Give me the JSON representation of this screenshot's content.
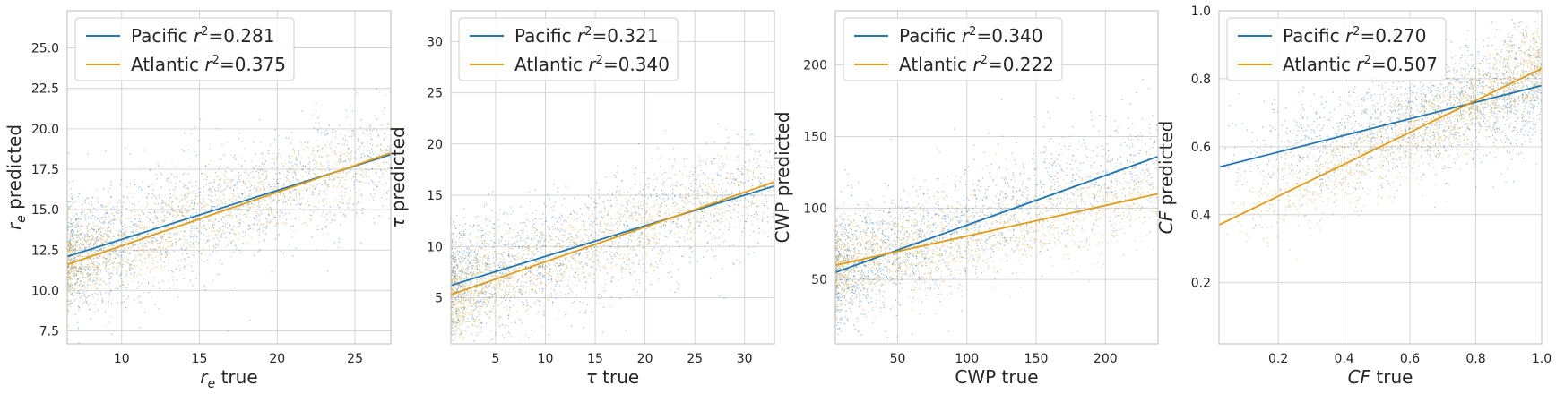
{
  "colors": {
    "pacific": "#1f77b4",
    "atlantic": "#e39c14",
    "grid": "#d4d4d4",
    "frame": "#c8c8c8"
  },
  "chart_data": [
    {
      "type": "scatter",
      "xlabel": {
        "var": "r",
        "sub": "e",
        "rest": " true"
      },
      "ylabel": {
        "var": "r",
        "sub": "e",
        "rest": " predicted"
      },
      "xlim": [
        6.5,
        27.3
      ],
      "ylim": [
        6.7,
        27.3
      ],
      "xticks": [
        10,
        15,
        20,
        25
      ],
      "yticks": [
        7.5,
        10.0,
        12.5,
        15.0,
        17.5,
        20.0,
        22.5,
        25.0
      ],
      "xtick_labels": [
        "10",
        "15",
        "20",
        "25"
      ],
      "ytick_labels": [
        "7.5",
        "10.0",
        "12.5",
        "15.0",
        "17.5",
        "20.0",
        "22.5",
        "25.0"
      ],
      "legend_position": "top-left",
      "series": [
        {
          "name": "Pacific",
          "r2_label": "Pacific r²=0.281",
          "r2": "0.281",
          "fit_line": [
            [
              6.5,
              12.1
            ],
            [
              27.3,
              18.4
            ]
          ]
        },
        {
          "name": "Atlantic",
          "r2_label": "Atlantic r²=0.375",
          "r2": "0.375",
          "fit_line": [
            [
              6.5,
              11.6
            ],
            [
              27.3,
              18.5
            ]
          ]
        }
      ]
    },
    {
      "type": "scatter",
      "xlabel": {
        "var": "τ",
        "sub": "",
        "rest": " true"
      },
      "ylabel": {
        "var": "τ",
        "sub": "",
        "rest": " predicted"
      },
      "xlim": [
        0.5,
        33
      ],
      "ylim": [
        0.5,
        33
      ],
      "xticks": [
        5,
        10,
        15,
        20,
        25,
        30
      ],
      "yticks": [
        5,
        10,
        15,
        20,
        25,
        30
      ],
      "xtick_labels": [
        "5",
        "10",
        "15",
        "20",
        "25",
        "30"
      ],
      "ytick_labels": [
        "5",
        "10",
        "15",
        "20",
        "25",
        "30"
      ],
      "legend_position": "top-left",
      "series": [
        {
          "name": "Pacific",
          "r2_label": "Pacific r²=0.321",
          "r2": "0.321",
          "fit_line": [
            [
              0.5,
              6.2
            ],
            [
              33,
              15.9
            ]
          ]
        },
        {
          "name": "Atlantic",
          "r2_label": "Atlantic r²=0.340",
          "r2": "0.340",
          "fit_line": [
            [
              0.5,
              5.3
            ],
            [
              33,
              16.3
            ]
          ]
        }
      ]
    },
    {
      "type": "scatter",
      "xlabel": {
        "var": "CWP",
        "sub": "",
        "rest": " true",
        "plain": true
      },
      "ylabel": {
        "var": "CWP",
        "sub": "",
        "rest": " predicted",
        "plain": true
      },
      "xlim": [
        5,
        238
      ],
      "ylim": [
        5,
        238
      ],
      "xticks": [
        50,
        100,
        150,
        200
      ],
      "yticks": [
        50,
        100,
        150,
        200
      ],
      "xtick_labels": [
        "50",
        "100",
        "150",
        "200"
      ],
      "ytick_labels": [
        "50",
        "100",
        "150",
        "200"
      ],
      "legend_position": "top-left",
      "series": [
        {
          "name": "Pacific",
          "r2_label": "Pacific r²=0.340",
          "r2": "0.340",
          "fit_line": [
            [
              5,
              55
            ],
            [
              238,
              136
            ]
          ]
        },
        {
          "name": "Atlantic",
          "r2_label": "Atlantic r²=0.222",
          "r2": "0.222",
          "fit_line": [
            [
              5,
              60
            ],
            [
              238,
              110
            ]
          ]
        }
      ]
    },
    {
      "type": "scatter",
      "xlabel": {
        "var": "CF",
        "sub": "",
        "rest": " true"
      },
      "ylabel": {
        "var": "CF",
        "sub": "",
        "rest": " predicted"
      },
      "xlim": [
        0.02,
        1.0
      ],
      "ylim": [
        0.02,
        1.0
      ],
      "xticks": [
        0.2,
        0.4,
        0.6,
        0.8,
        1.0
      ],
      "yticks": [
        0.2,
        0.4,
        0.6,
        0.8,
        1.0
      ],
      "xtick_labels": [
        "0.2",
        "0.4",
        "0.6",
        "0.8",
        "1.0"
      ],
      "ytick_labels": [
        "0.2",
        "0.4",
        "0.6",
        "0.8",
        "1.0"
      ],
      "legend_position": "top-left",
      "series": [
        {
          "name": "Pacific",
          "r2_label": "Pacific r²=0.270",
          "r2": "0.270",
          "fit_line": [
            [
              0.02,
              0.54
            ],
            [
              1.0,
              0.78
            ]
          ]
        },
        {
          "name": "Atlantic",
          "r2_label": "Atlantic r²=0.507",
          "r2": "0.507",
          "fit_line": [
            [
              0.02,
              0.37
            ],
            [
              1.0,
              0.83
            ]
          ]
        }
      ]
    }
  ]
}
